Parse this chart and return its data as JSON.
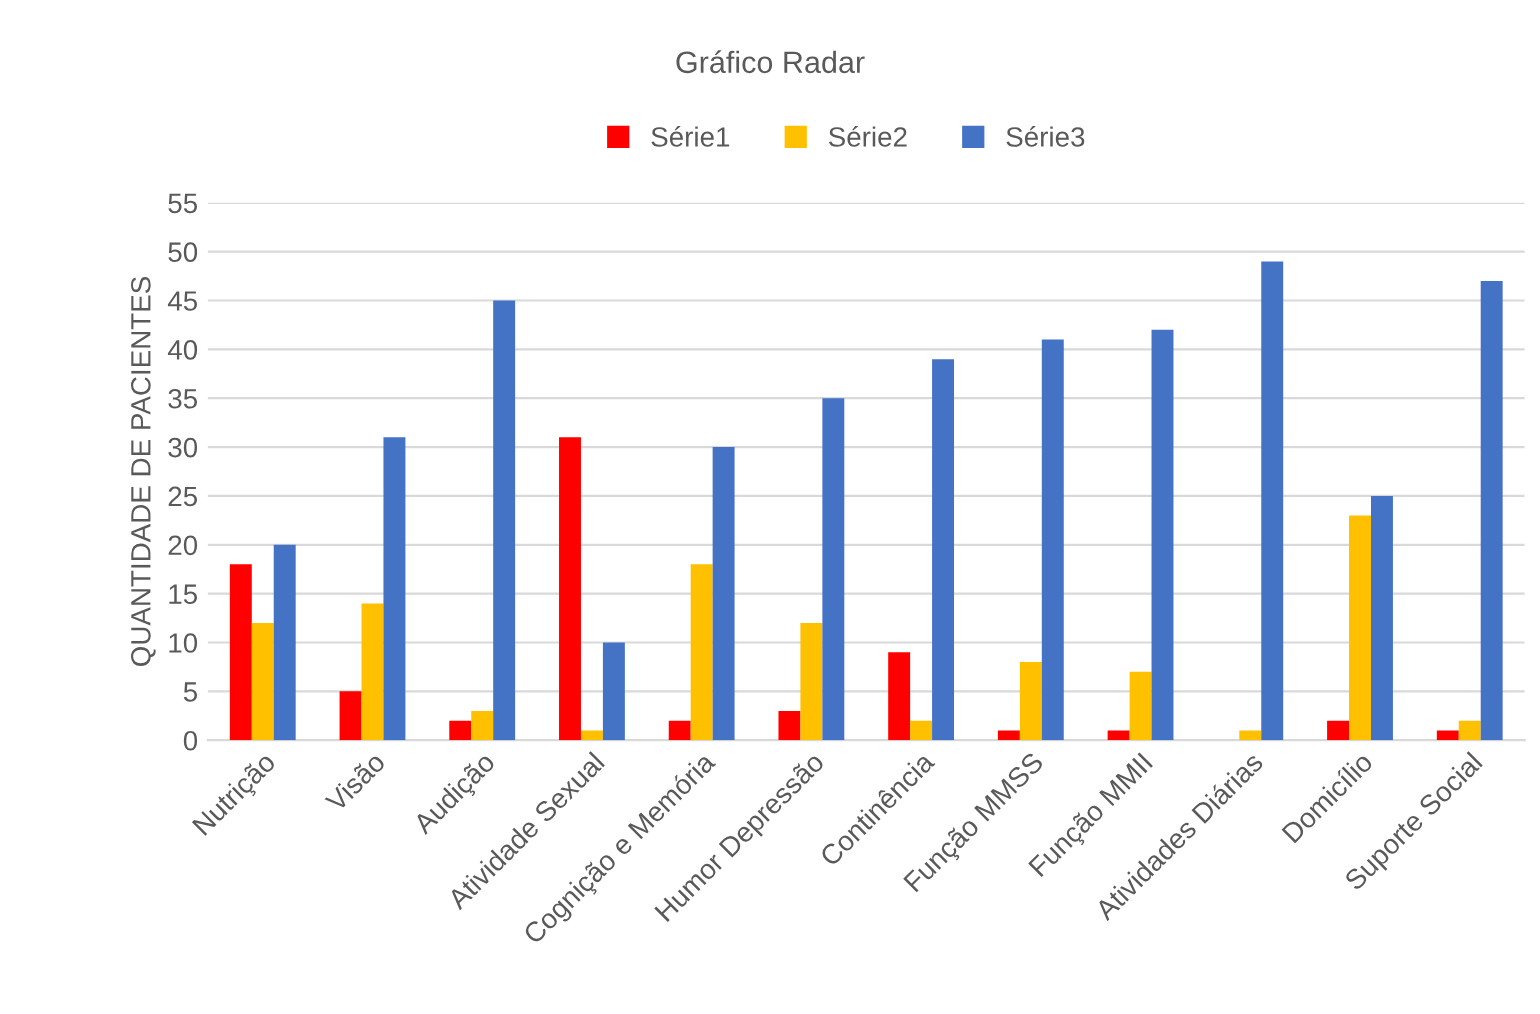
{
  "chart_data": {
    "type": "bar",
    "title": "Gráfico Radar",
    "ylabel": "QUANTIDADE DE PACIENTES",
    "categories": [
      "Nutrição",
      "Visão",
      "Audição",
      "Atividade Sexual",
      "Cognição e Memória",
      "Humor Depressão",
      "Continência",
      "Função MMSS",
      "Função MMII",
      "Atividades Diárias",
      "Domicílio",
      "Suporte Social"
    ],
    "series": [
      {
        "name": "Série1",
        "color": "#ff0000",
        "values": [
          18,
          5,
          2,
          31,
          2,
          3,
          9,
          1,
          1,
          0,
          2,
          1
        ]
      },
      {
        "name": "Série2",
        "color": "#ffc000",
        "values": [
          12,
          14,
          3,
          1,
          18,
          12,
          2,
          8,
          7,
          1,
          23,
          2
        ]
      },
      {
        "name": "Série3",
        "color": "#4472c4",
        "values": [
          20,
          31,
          45,
          10,
          30,
          35,
          39,
          41,
          42,
          49,
          25,
          47
        ]
      }
    ],
    "ylim": [
      0,
      55
    ],
    "yticks": [
      0,
      5,
      10,
      15,
      20,
      25,
      30,
      35,
      40,
      45,
      50,
      55
    ],
    "grid": "y",
    "legend": "top"
  }
}
